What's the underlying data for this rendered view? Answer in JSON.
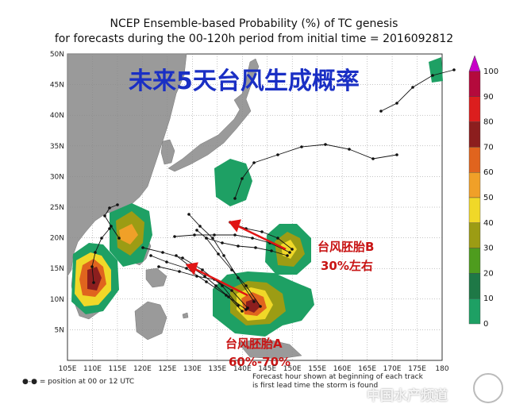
{
  "header": {
    "title_line1": "NCEP Ensemble-based Probability (%) of TC genesis",
    "title_line2": "for forecasts during the 00-120h period from initial time = 2016092812"
  },
  "banner": "未来5天台风生成概率",
  "map": {
    "lon_labels": [
      "105E",
      "110E",
      "115E",
      "120E",
      "125E",
      "130E",
      "135E",
      "140E",
      "145E",
      "150E",
      "155E",
      "160E",
      "165E",
      "170E",
      "175E",
      "180"
    ],
    "lat_labels": [
      "50N",
      "45N",
      "40N",
      "35N",
      "30N",
      "25N",
      "20N",
      "15N",
      "10N",
      "5N"
    ],
    "land_color": "#9a9a9a",
    "ocean_color": "#ffffff"
  },
  "annotations": {
    "embryo_b_name": "台风胚胎B",
    "embryo_b_prob": "30%左右",
    "embryo_a_name": "台风胚胎A",
    "embryo_a_prob": "60%-70%"
  },
  "colorbar": {
    "labels": [
      "100",
      "90",
      "80",
      "70",
      "60",
      "50",
      "40",
      "30",
      "20",
      "10",
      "0"
    ],
    "colors": [
      "#c800c8",
      "#b40a3c",
      "#dc1e1e",
      "#8c1e1e",
      "#e0641e",
      "#f0a028",
      "#f0d828",
      "#9c9c14",
      "#4e9c1e",
      "#1e7846",
      "#1ea064"
    ]
  },
  "footer": {
    "legend": "= position at 00 or 12 UTC",
    "note_line1": "Forecast hour shown at beginning of each track",
    "note_line2": "is first lead time the storm is found"
  },
  "watermark": "中国水产频道"
}
